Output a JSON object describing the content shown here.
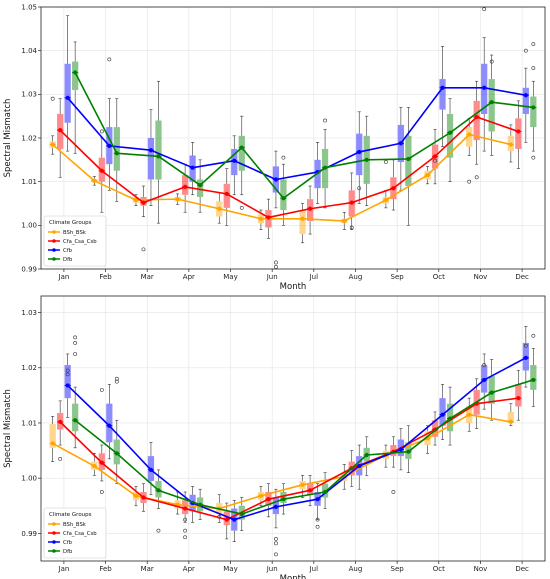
{
  "chart_data": [
    {
      "type": "line",
      "categories": [
        "Jan",
        "Feb",
        "Mar",
        "Apr",
        "May",
        "Jun",
        "Jul",
        "Aug",
        "Sep",
        "Oct",
        "Nov",
        "Dec"
      ],
      "xlabel": "Month",
      "ylabel": "Spectral Mismatch",
      "ylim": [
        0.99,
        1.05
      ],
      "yticks": [
        "0.99",
        "1.00",
        "1.01",
        "1.02",
        "1.03",
        "1.04",
        "1.05"
      ],
      "grid": true,
      "legend": {
        "title": "Climate Groups",
        "placement": "lower-left"
      },
      "series": [
        {
          "name": "BSh_BSk",
          "color": "#ffa500",
          "values": [
            1.0185,
            1.0102,
            1.0058,
            1.006,
            1.0038,
            1.0015,
            1.0015,
            1.001,
            1.0058,
            1.0115,
            1.0208,
            1.0185
          ],
          "boxes": [
            [
              1.0178,
              1.0192,
              1.0163,
              1.0205
            ],
            [
              1.0098,
              1.0106,
              1.0092,
              1.0112
            ],
            [
              1.0052,
              1.0064,
              1.0045,
              1.007
            ],
            [
              1.0055,
              1.0065,
              1.0048,
              1.0072
            ],
            [
              1.002,
              1.0055,
              1.0005,
              1.0075
            ],
            [
              1.0005,
              1.0025,
              0.999,
              1.0035
            ],
            [
              0.998,
              1.0035,
              0.996,
              1.005
            ],
            [
              1.0005,
              1.0015,
              0.999,
              1.003
            ],
            [
              1.005,
              1.0065,
              1.004,
              1.008
            ],
            [
              1.0105,
              1.0125,
              1.0095,
              1.0135
            ],
            [
              1.018,
              1.0225,
              1.016,
              1.0245
            ],
            [
              1.017,
              1.0205,
              1.0145,
              1.023
            ]
          ]
        },
        {
          "name": "Cfa_Csa_Csb",
          "color": "#ff0000",
          "values": [
            1.0218,
            1.0125,
            1.0052,
            1.0088,
            1.0072,
            1.0018,
            1.0038,
            1.0052,
            1.0085,
            1.0158,
            1.0248,
            1.0215
          ],
          "boxes": [
            [
              1.0175,
              1.0255,
              1.011,
              1.029
            ],
            [
              1.01,
              1.0155,
              1.003,
              1.02
            ],
            [
              1.0045,
              1.0065,
              1.002,
              1.009
            ],
            [
              1.007,
              1.0115,
              1.003,
              1.014
            ],
            [
              1.004,
              1.0095,
              1.0,
              1.013
            ],
            [
              0.9995,
              1.0035,
              0.997,
              1.006
            ],
            [
              1.001,
              1.006,
              0.998,
              1.009
            ],
            [
              1.002,
              1.008,
              0.999,
              1.012
            ],
            [
              1.006,
              1.011,
              1.0035,
              1.015
            ],
            [
              1.013,
              1.0185,
              1.0095,
              1.022
            ],
            [
              1.0195,
              1.0285,
              1.014,
              1.033
            ],
            [
              1.0175,
              1.0245,
              1.013,
              1.0285
            ]
          ]
        },
        {
          "name": "Cfb",
          "color": "#0000ff",
          "values": [
            1.0292,
            1.0182,
            1.0172,
            1.0132,
            1.0148,
            1.0105,
            1.0122,
            1.0168,
            1.0188,
            1.0315,
            1.0315,
            1.0298
          ],
          "boxes": [
            [
              1.0235,
              1.037,
              1.017,
              1.048
            ],
            [
              1.014,
              1.0225,
              1.008,
              1.029
            ],
            [
              1.0105,
              1.02,
              1.0045,
              1.0265
            ],
            [
              1.01,
              1.016,
              1.007,
              1.019
            ],
            [
              1.0115,
              1.0175,
              1.007,
              1.0205
            ],
            [
              1.0075,
              1.0135,
              1.004,
              1.017
            ],
            [
              1.0085,
              1.015,
              1.005,
              1.019
            ],
            [
              1.0115,
              1.021,
              1.005,
              1.026
            ],
            [
              1.0145,
              1.023,
              1.008,
              1.027
            ],
            [
              1.0265,
              1.0335,
              1.018,
              1.041
            ],
            [
              1.0255,
              1.037,
              1.017,
              1.043
            ],
            [
              1.0255,
              1.0315,
              1.019,
              1.036
            ]
          ]
        },
        {
          "name": "Dfb",
          "color": "#008000",
          "values": [
            1.035,
            1.0165,
            1.0158,
            1.0092,
            1.0178,
            1.0062,
            1.0132,
            1.015,
            1.0152,
            1.0212,
            1.0282,
            1.027
          ],
          "boxes": [
            [
              1.031,
              1.0375,
              1.0165,
              1.042
            ],
            [
              1.0125,
              1.0225,
              1.0055,
              1.029
            ],
            [
              1.0105,
              1.024,
              1.0005,
              1.033
            ],
            [
              1.0065,
              1.0105,
              1.003,
              1.015
            ],
            [
              1.0125,
              1.0205,
              1.007,
              1.025
            ],
            [
              1.0035,
              1.0105,
              1.0,
              1.014
            ],
            [
              1.0085,
              1.0175,
              1.004,
              1.022
            ],
            [
              1.0095,
              1.0205,
              1.0045,
              1.025
            ],
            [
              1.009,
              1.0205,
              1.0,
              1.027
            ],
            [
              1.0155,
              1.0255,
              1.01,
              1.029
            ],
            [
              1.0215,
              1.0335,
              1.016,
              1.039
            ],
            [
              1.0225,
              1.0295,
              1.017,
              1.033
            ]
          ]
        }
      ],
      "outliers": [
        {
          "series": "BSh_BSk",
          "x": "Jan",
          "y": 1.029
        },
        {
          "series": "Cfa_Csa_Csb",
          "x": "Feb",
          "y": 1.0215
        },
        {
          "series": "Cfb",
          "x": "Feb",
          "y": 1.038
        },
        {
          "series": "Cfa_Csa_Csb",
          "x": "Mar",
          "y": 0.9945
        },
        {
          "series": "Dfb",
          "x": "May",
          "y": 1.004
        },
        {
          "series": "Cfb",
          "x": "Jun",
          "y": 0.9905
        },
        {
          "series": "Cfb",
          "x": "Jun",
          "y": 0.9915
        },
        {
          "series": "Dfb",
          "x": "Jun",
          "y": 1.0155
        },
        {
          "series": "Dfb",
          "x": "Jul",
          "y": 1.024
        },
        {
          "series": "Cfa_Csa_Csb",
          "x": "Aug",
          "y": 0.9995
        },
        {
          "series": "Cfb",
          "x": "Aug",
          "y": 1.0085
        },
        {
          "series": "BSh_BSk",
          "x": "Sep",
          "y": 1.0145
        },
        {
          "series": "Cfa_Csa_Csb",
          "x": "Oct",
          "y": 1.0148
        },
        {
          "series": "BSh_BSk",
          "x": "Nov",
          "y": 1.01
        },
        {
          "series": "Cfa_Csa_Csb",
          "x": "Nov",
          "y": 1.011
        },
        {
          "series": "Cfb",
          "x": "Nov",
          "y": 1.0495
        },
        {
          "series": "Dfb",
          "x": "Nov",
          "y": 1.0375
        },
        {
          "series": "Cfb",
          "x": "Dec",
          "y": 1.04
        },
        {
          "series": "Dfb",
          "x": "Dec",
          "y": 1.0415
        },
        {
          "series": "Dfb",
          "x": "Dec",
          "y": 1.036
        },
        {
          "series": "Dfb",
          "x": "Dec",
          "y": 1.0155
        }
      ]
    },
    {
      "type": "line",
      "categories": [
        "Jan",
        "Feb",
        "Mar",
        "Apr",
        "May",
        "Jun",
        "Jul",
        "Aug",
        "Sep",
        "Oct",
        "Nov",
        "Dec"
      ],
      "xlabel": "Month",
      "ylabel": "Spectral Mismatch",
      "ylim": [
        0.985,
        1.033
      ],
      "yticks": [
        "0.99",
        "1.00",
        "1.01",
        "1.02",
        "1.03"
      ],
      "grid": true,
      "legend": {
        "title": "Climate Groups",
        "placement": "lower-left"
      },
      "series": [
        {
          "name": "BSh_BSk",
          "color": "#ffa500",
          "values": [
            1.0063,
            1.0022,
            0.9968,
            0.9952,
            0.9945,
            0.9968,
            0.9988,
            1.0003,
            1.0042,
            1.0072,
            1.0115,
            1.0102
          ],
          "boxes": [
            [
              1.0055,
              1.0098,
              1.003,
              1.0112
            ],
            [
              1.0015,
              1.003,
              1.0005,
              1.0045
            ],
            [
              0.996,
              0.9975,
              0.995,
              0.9985
            ],
            [
              0.9945,
              0.996,
              0.9935,
              0.9975
            ],
            [
              0.9935,
              0.9955,
              0.992,
              0.997
            ],
            [
              0.996,
              0.9975,
              0.995,
              0.9985
            ],
            [
              0.998,
              0.9995,
              0.9965,
              1.0005
            ],
            [
              0.9995,
              1.001,
              0.998,
              1.0025
            ],
            [
              1.0035,
              1.005,
              1.002,
              1.006
            ],
            [
              1.006,
              1.0085,
              1.0045,
              1.0095
            ],
            [
              1.01,
              1.013,
              1.0085,
              1.0145
            ],
            [
              1.01,
              1.012,
              1.0095,
              1.0135
            ]
          ]
        },
        {
          "name": "Cfa_Csa_Csb",
          "color": "#ff0000",
          "values": [
            1.0102,
            1.0028,
            0.9965,
            0.9945,
            0.9925,
            0.9962,
            0.9978,
            1.0018,
            1.0048,
            1.0088,
            1.0135,
            1.0145
          ],
          "boxes": [
            [
              1.0088,
              1.0118,
              1.006,
              1.014
            ],
            [
              1.0015,
              1.0045,
              0.9995,
              1.006
            ],
            [
              0.9955,
              0.9975,
              0.994,
              0.999
            ],
            [
              0.9935,
              0.996,
              0.992,
              0.9975
            ],
            [
              0.9915,
              0.994,
              0.989,
              0.9955
            ],
            [
              0.995,
              0.9975,
              0.993,
              0.999
            ],
            [
              0.997,
              0.999,
              0.995,
              1.0005
            ],
            [
              1.0005,
              1.003,
              0.9985,
              1.005
            ],
            [
              1.004,
              1.006,
              1.002,
              1.0075
            ],
            [
              1.0075,
              1.0105,
              1.006,
              1.012
            ],
            [
              1.0115,
              1.016,
              1.009,
              1.018
            ],
            [
              1.013,
              1.017,
              1.0105,
              1.0195
            ]
          ]
        },
        {
          "name": "Cfb",
          "color": "#0000ff",
          "values": [
            1.0168,
            1.0095,
            1.0015,
            0.9955,
            0.9925,
            0.9948,
            0.9962,
            1.0022,
            1.0052,
            1.0115,
            1.0178,
            1.0218
          ],
          "boxes": [
            [
              1.0145,
              1.0205,
              1.011,
              1.0225
            ],
            [
              1.0065,
              1.0135,
              1.0035,
              1.017
            ],
            [
              0.9995,
              1.004,
              0.997,
              1.0065
            ],
            [
              0.994,
              0.997,
              0.992,
              0.9985
            ],
            [
              0.9905,
              0.9945,
              0.9885,
              0.996
            ],
            [
              0.9935,
              0.9965,
              0.991,
              0.998
            ],
            [
              0.995,
              0.9975,
              0.9925,
              0.999
            ],
            [
              1.0005,
              1.004,
              0.998,
              1.006
            ],
            [
              1.004,
              1.007,
              1.0015,
              1.009
            ],
            [
              1.0095,
              1.0145,
              1.007,
              1.017
            ],
            [
              1.0155,
              1.0205,
              1.0125,
              1.0225
            ],
            [
              1.0195,
              1.0245,
              1.0165,
              1.0275
            ]
          ]
        },
        {
          "name": "Dfb",
          "color": "#008000",
          "values": [
            1.0105,
            1.0045,
            0.9978,
            0.9952,
            0.9935,
            0.9962,
            0.9975,
            1.0042,
            1.0048,
            1.0108,
            1.0155,
            1.0178
          ],
          "boxes": [
            [
              1.0085,
              1.0135,
              1.0055,
              1.0165
            ],
            [
              1.0025,
              1.007,
              0.999,
              1.0105
            ],
            [
              0.9965,
              0.9995,
              0.9945,
              1.0015
            ],
            [
              0.994,
              0.9965,
              0.9925,
              0.998
            ],
            [
              0.9925,
              0.995,
              0.9905,
              0.9965
            ],
            [
              0.9955,
              0.9975,
              0.9935,
              0.999
            ],
            [
              0.9965,
              0.999,
              0.9945,
              1.001
            ],
            [
              1.003,
              1.0055,
              1.0005,
              1.0075
            ],
            [
              1.0035,
              1.0065,
              1.001,
              1.0095
            ],
            [
              1.0085,
              1.0135,
              1.006,
              1.0165
            ],
            [
              1.0135,
              1.0185,
              1.0105,
              1.0215
            ],
            [
              1.016,
              1.0205,
              1.013,
              1.0235
            ]
          ]
        }
      ],
      "outliers": [
        {
          "series": "Cfa_Csa_Csb",
          "x": "Jan",
          "y": 1.0035
        },
        {
          "series": "Cfb",
          "x": "Jan",
          "y": 1.0195
        },
        {
          "series": "Cfb",
          "x": "Jan",
          "y": 1.0188
        },
        {
          "series": "Dfb",
          "x": "Jan",
          "y": 1.0255
        },
        {
          "series": "Dfb",
          "x": "Jan",
          "y": 1.0245
        },
        {
          "series": "Dfb",
          "x": "Jan",
          "y": 1.0225
        },
        {
          "series": "Cfa_Csa_Csb",
          "x": "Feb",
          "y": 1.016
        },
        {
          "series": "Cfa_Csa_Csb",
          "x": "Feb",
          "y": 0.9975
        },
        {
          "series": "Dfb",
          "x": "Feb",
          "y": 1.018
        },
        {
          "series": "Dfb",
          "x": "Feb",
          "y": 1.0175
        },
        {
          "series": "Dfb",
          "x": "Mar",
          "y": 0.9905
        },
        {
          "series": "Cfa_Csa_Csb",
          "x": "Apr",
          "y": 0.9925
        },
        {
          "series": "Cfa_Csa_Csb",
          "x": "Apr",
          "y": 0.9905
        },
        {
          "series": "Cfa_Csa_Csb",
          "x": "Apr",
          "y": 0.9893
        },
        {
          "series": "BSh_BSk",
          "x": "May",
          "y": 0.993
        },
        {
          "series": "Cfb",
          "x": "Jun",
          "y": 0.989
        },
        {
          "series": "Cfb",
          "x": "Jun",
          "y": 0.9882
        },
        {
          "series": "Cfb",
          "x": "Jun",
          "y": 0.9862
        },
        {
          "series": "Cfb",
          "x": "Jul",
          "y": 0.9925
        },
        {
          "series": "Cfb",
          "x": "Jul",
          "y": 0.9912
        },
        {
          "series": "Cfa_Csa_Csb",
          "x": "Sep",
          "y": 0.9975
        },
        {
          "series": "Cfb",
          "x": "Nov",
          "y": 1.0205
        },
        {
          "series": "Dfb",
          "x": "Dec",
          "y": 1.0258
        },
        {
          "series": "Cfb",
          "x": "Dec",
          "y": 1.024
        }
      ]
    }
  ]
}
